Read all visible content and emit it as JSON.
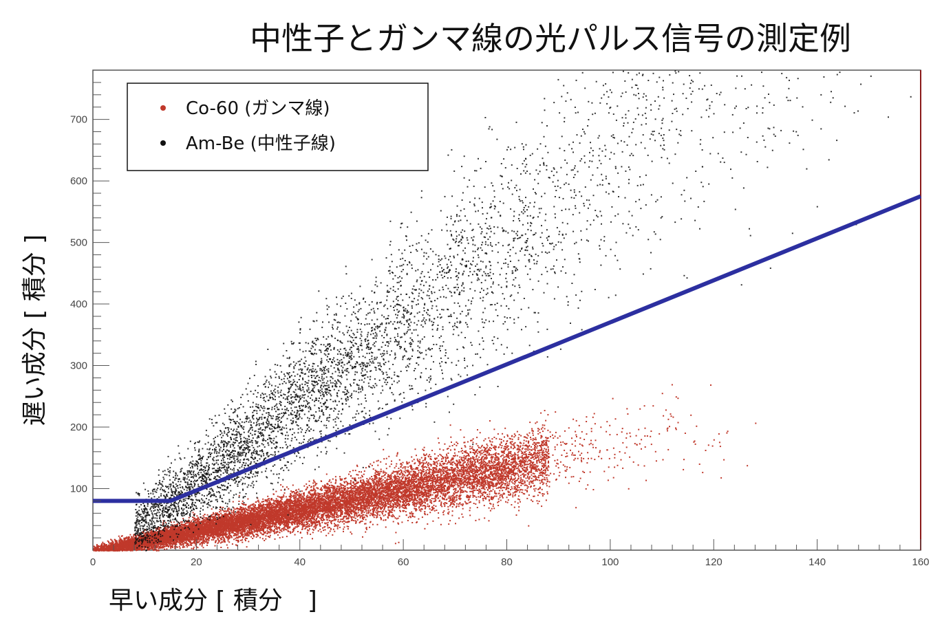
{
  "chart_data": {
    "type": "scatter",
    "title": "中性子とガンマ線の光パルス信号の測定例",
    "xlabel": "早い成分 [ 積分　]",
    "ylabel": "遅い成分 [ 積分 ]",
    "xlim": [
      0,
      160
    ],
    "ylim": [
      0,
      780
    ],
    "xticks": [
      0,
      20,
      40,
      60,
      80,
      100,
      120,
      140,
      160
    ],
    "yticks": [
      100,
      200,
      300,
      400,
      500,
      600,
      700
    ],
    "grid": false,
    "legend_position": "top-left",
    "series": [
      {
        "name": "Co-60 (ガンマ線)",
        "color": "#c0392b",
        "distribution": {
          "x_range": [
            0,
            130
          ],
          "slope_y_per_x": 1.7,
          "spread": "increasing with x",
          "dense_until_x": 90
        }
      },
      {
        "name": "Am-Be (中性子線)",
        "color": "#111111",
        "distribution": {
          "x_range": [
            8,
            160
          ],
          "slope_y_per_x": 6.5,
          "spread": "increasing with x"
        }
      }
    ],
    "lines": [
      {
        "name": "discrimination-line",
        "color": "#2c2fa0",
        "points": [
          [
            0,
            80
          ],
          [
            15,
            80
          ],
          [
            160,
            575
          ]
        ]
      }
    ]
  }
}
